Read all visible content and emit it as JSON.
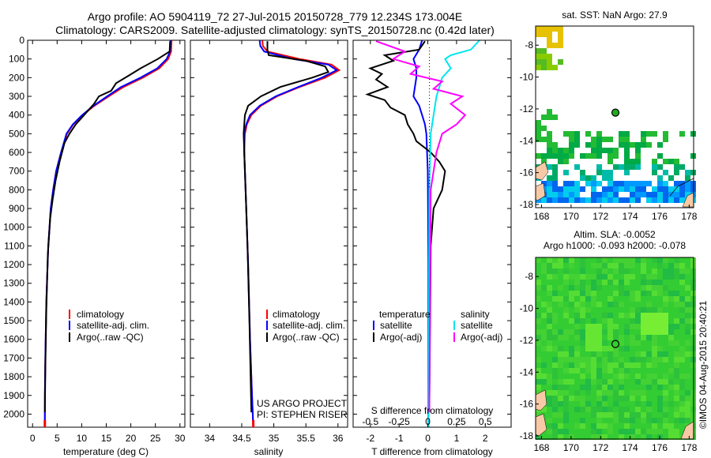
{
  "header": {
    "line1": "Argo profile: AO 5904119_72 27-Jul-2015 20150728_779 12.234S 173.004E",
    "line2": "Climatology: CARS2009. Satellite-adjusted climatology: synTS_20150728.nc (0.42d later)"
  },
  "colors": {
    "climatology": "#ff0000",
    "satellite": "#0000ff",
    "argo": "#000000",
    "sat_salinity": "#00e5ee",
    "argo_salinity_diff": "#ff00ff"
  },
  "chart_data": [
    {
      "type": "line",
      "xlabel": "temperature (deg C)",
      "xlim": [
        -1,
        31
      ],
      "xticks": [
        0,
        5,
        10,
        15,
        20,
        25,
        30
      ],
      "ylim": [
        2070,
        0
      ],
      "yticks": [
        0,
        100,
        200,
        300,
        400,
        500,
        600,
        700,
        800,
        900,
        1000,
        1100,
        1200,
        1300,
        1400,
        1500,
        1600,
        1700,
        1800,
        1900,
        2000
      ],
      "legend": [
        "climatology",
        "satellite-adj. clim.",
        "Argo(..raw -QC)"
      ],
      "series": [
        {
          "name": "climatology",
          "x": [
            28.3,
            28.2,
            27.6,
            25.8,
            22.5,
            18.5,
            15.5,
            12.6,
            10.2,
            8.3,
            7.0,
            5.8,
            4.8,
            4.2,
            3.7,
            3.2,
            2.8,
            2.6,
            2.5,
            2.5
          ],
          "y": [
            0,
            60,
            100,
            150,
            200,
            250,
            300,
            350,
            400,
            450,
            500,
            600,
            700,
            800,
            900,
            1100,
            1400,
            1700,
            1900,
            2070
          ]
        },
        {
          "name": "satellite-adj. clim.",
          "x": [
            28.1,
            28.0,
            27.3,
            25.4,
            22.0,
            18.0,
            15.2,
            12.4,
            10.1,
            8.2,
            6.9,
            5.8,
            4.8,
            4.2,
            3.7,
            3.2,
            2.8,
            2.6,
            2.5,
            2.5
          ],
          "y": [
            0,
            60,
            100,
            150,
            200,
            250,
            300,
            350,
            400,
            450,
            500,
            600,
            700,
            800,
            900,
            1100,
            1400,
            1700,
            1900,
            2070
          ]
        },
        {
          "name": "Argo(..raw -QC)",
          "x": [
            28.0,
            27.9,
            25.5,
            22.0,
            19.5,
            17.0,
            16.0,
            13.5,
            12.5,
            10.5,
            8.8,
            7.5,
            6.5,
            5.5,
            4.7,
            4.1,
            3.6,
            3.1,
            2.8,
            2.6,
            2.5
          ],
          "y": [
            5,
            60,
            100,
            150,
            190,
            230,
            270,
            300,
            340,
            400,
            450,
            500,
            550,
            650,
            750,
            850,
            950,
            1150,
            1450,
            1750,
            1990
          ]
        }
      ]
    },
    {
      "type": "line",
      "xlabel": "salinity",
      "xlim": [
        33.7,
        36.15
      ],
      "xticks": [
        34,
        34.5,
        35,
        35.5,
        36
      ],
      "legend": [
        "climatology",
        "satellite-adj. clim.",
        "Argo(..raw -QC)"
      ],
      "annotation": [
        "US ARGO PROJECT",
        "PI: STEPHEN RISER"
      ],
      "series": [
        {
          "name": "climatology",
          "x": [
            34.82,
            34.83,
            34.9,
            35.4,
            35.9,
            36.02,
            35.8,
            35.4,
            35.05,
            34.8,
            34.65,
            34.58,
            34.55,
            34.54,
            34.55,
            34.57,
            34.6,
            34.63,
            34.66,
            34.68
          ],
          "y": [
            0,
            30,
            60,
            100,
            130,
            160,
            200,
            250,
            300,
            350,
            400,
            450,
            500,
            600,
            700,
            900,
            1200,
            1600,
            1900,
            2070
          ]
        },
        {
          "name": "satellite-adj. clim.",
          "x": [
            34.78,
            34.79,
            34.85,
            35.3,
            35.85,
            35.98,
            35.75,
            35.38,
            35.03,
            34.78,
            34.63,
            34.57,
            34.54,
            34.54,
            34.55,
            34.57,
            34.6,
            34.63,
            34.66,
            34.68
          ],
          "y": [
            0,
            30,
            60,
            100,
            130,
            160,
            200,
            250,
            300,
            350,
            400,
            450,
            500,
            600,
            700,
            900,
            1200,
            1600,
            1900,
            2070
          ]
        },
        {
          "name": "Argo(..raw -QC)",
          "x": [
            34.9,
            34.9,
            34.92,
            35.5,
            35.8,
            35.85,
            35.6,
            35.1,
            34.8,
            34.6,
            34.55,
            34.53,
            34.54,
            34.56,
            34.59,
            34.62,
            34.65
          ],
          "y": [
            5,
            50,
            80,
            110,
            140,
            170,
            200,
            250,
            300,
            350,
            400,
            500,
            600,
            800,
            1100,
            1500,
            1990
          ]
        }
      ]
    },
    {
      "type": "line",
      "xlabel": "T difference from climatology",
      "xlabel_top": "S difference from climatology",
      "xlim": [
        -2.6,
        2.9
      ],
      "xticks": [
        -2,
        -1,
        0,
        1,
        2
      ],
      "xticks_top": [
        -0.5,
        -0.25,
        0,
        0.25,
        0.5
      ],
      "legend_titles": [
        "temperature",
        "salinity"
      ],
      "legend": [
        "satellite",
        "Argo(-adj)",
        "satellite",
        "Argo(-adj)"
      ],
      "series": [
        {
          "name": "satellite",
          "x": [
            -0.2,
            -0.3,
            -0.5,
            -0.4,
            -0.4,
            -0.45,
            -0.5,
            -0.3,
            -0.2,
            -0.1,
            -0.05,
            0,
            0.02,
            0.02
          ],
          "y": [
            0,
            50,
            100,
            150,
            200,
            250,
            300,
            350,
            400,
            450,
            500,
            700,
            1200,
            2070
          ]
        },
        {
          "name": "Argo(-adj)",
          "x": [
            -0.1,
            -0.3,
            -1.5,
            -1.2,
            -2.0,
            -1.6,
            -1.8,
            -1.4,
            -2.1,
            -1.5,
            -1.3,
            -0.8,
            -0.7,
            -0.5,
            -0.4,
            0.1,
            0.4,
            0.6,
            0.5,
            0.2,
            0.1,
            0.05
          ],
          "y": [
            5,
            50,
            80,
            110,
            150,
            180,
            210,
            250,
            290,
            320,
            360,
            400,
            450,
            500,
            540,
            600,
            650,
            700,
            800,
            900,
            1100,
            1990
          ]
        },
        {
          "name": "satellite",
          "x": [
            1.8,
            1.5,
            0.8,
            0.6,
            0.8,
            0.5,
            0.4,
            0.3,
            0.2,
            0.1,
            0.05,
            0.03
          ],
          "y": [
            0,
            50,
            80,
            100,
            150,
            200,
            250,
            300,
            400,
            500,
            800,
            2070
          ]
        },
        {
          "name": "Argo(-adj)",
          "x": [
            -1.8,
            -0.8,
            -1.2,
            -0.3,
            -0.6,
            0.5,
            0.2,
            1.2,
            0.8,
            1.3,
            1.0,
            0.5,
            0.3,
            0.1,
            0.05
          ],
          "y": [
            5,
            60,
            100,
            140,
            180,
            220,
            260,
            300,
            340,
            400,
            450,
            500,
            600,
            800,
            1990
          ]
        }
      ]
    },
    {
      "type": "heatmap",
      "title": "sat. SST: NaN Argo: 27.9",
      "xlim": [
        167.6,
        178.3
      ],
      "ylim": [
        -18.2,
        -6.8
      ],
      "xticks": [
        168,
        170,
        172,
        174,
        176,
        178
      ],
      "yticks": [
        -8,
        -10,
        -12,
        -14,
        -16,
        -18
      ],
      "marker": {
        "lon": 173.004,
        "lat": -12.234
      }
    },
    {
      "type": "heatmap",
      "title": "Altim. SLA: -0.0052",
      "subtitle": "Argo h1000: -0.093 h2000: -0.078",
      "xlim": [
        167.6,
        178.3
      ],
      "ylim": [
        -18.2,
        -6.8
      ],
      "xticks": [
        168,
        170,
        172,
        174,
        176,
        178
      ],
      "yticks": [
        -8,
        -10,
        -12,
        -14,
        -16,
        -18
      ],
      "marker": {
        "lon": 173.004,
        "lat": -12.234
      }
    }
  ],
  "footer": {
    "stamp": "©IMOS 04-Aug-2015 20:40:21"
  }
}
